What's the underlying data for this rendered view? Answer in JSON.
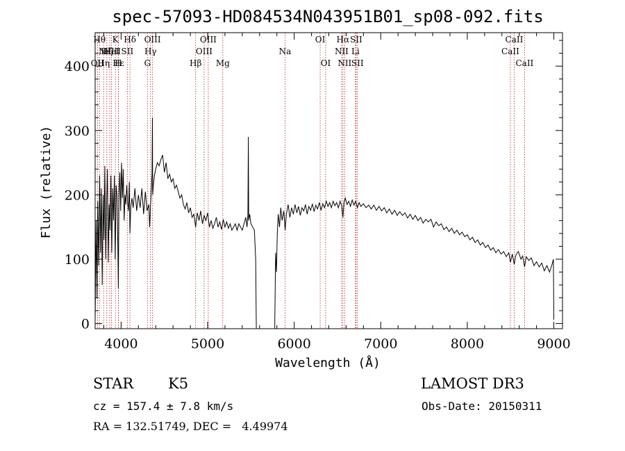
{
  "chart_data": {
    "type": "line",
    "title": "spec-57093-HD084534N043951B01_sp08-092.fits",
    "xlabel": "Wavelength (Å)",
    "ylabel": "Flux (relative)",
    "xlim": [
      3700,
      9100
    ],
    "ylim": [
      -8,
      452
    ],
    "x_ticks": [
      4000,
      5000,
      6000,
      7000,
      8000,
      9000
    ],
    "y_ticks": [
      0,
      100,
      200,
      300,
      400
    ],
    "grid": false,
    "series": [
      {
        "color": "#000000",
        "points": [
          [
            3700,
            5
          ],
          [
            3712,
            160
          ],
          [
            3722,
            40
          ],
          [
            3730,
            190
          ],
          [
            3740,
            90
          ],
          [
            3752,
            230
          ],
          [
            3762,
            110
          ],
          [
            3772,
            210
          ],
          [
            3782,
            60
          ],
          [
            3792,
            200
          ],
          [
            3802,
            130
          ],
          [
            3812,
            245
          ],
          [
            3822,
            100
          ],
          [
            3832,
            190
          ],
          [
            3842,
            240
          ],
          [
            3852,
            95
          ],
          [
            3862,
            185
          ],
          [
            3872,
            145
          ],
          [
            3882,
            230
          ],
          [
            3892,
            110
          ],
          [
            3902,
            210
          ],
          [
            3912,
            160
          ],
          [
            3922,
            230
          ],
          [
            3932,
            100
          ],
          [
            3942,
            215
          ],
          [
            3952,
            200
          ],
          [
            3962,
            120
          ],
          [
            3968,
            55
          ],
          [
            3975,
            200
          ],
          [
            3985,
            235
          ],
          [
            3995,
            175
          ],
          [
            4005,
            250
          ],
          [
            4015,
            195
          ],
          [
            4025,
            240
          ],
          [
            4035,
            160
          ],
          [
            4045,
            200
          ],
          [
            4055,
            185
          ],
          [
            4065,
            215
          ],
          [
            4075,
            190
          ],
          [
            4085,
            175
          ],
          [
            4095,
            220
          ],
          [
            4102,
            140
          ],
          [
            4112,
            180
          ],
          [
            4125,
            195
          ],
          [
            4140,
            180
          ],
          [
            4160,
            210
          ],
          [
            4180,
            175
          ],
          [
            4200,
            200
          ],
          [
            4220,
            180
          ],
          [
            4240,
            210
          ],
          [
            4260,
            170
          ],
          [
            4280,
            205
          ],
          [
            4300,
            175
          ],
          [
            4320,
            185
          ],
          [
            4330,
            150
          ],
          [
            4340,
            185
          ],
          [
            4350,
            210
          ],
          [
            4358,
            235
          ],
          [
            4362,
            320
          ],
          [
            4365,
            200
          ],
          [
            4372,
            215
          ],
          [
            4385,
            230
          ],
          [
            4400,
            240
          ],
          [
            4420,
            250
          ],
          [
            4440,
            245
          ],
          [
            4460,
            255
          ],
          [
            4480,
            262
          ],
          [
            4500,
            235
          ],
          [
            4520,
            250
          ],
          [
            4540,
            225
          ],
          [
            4560,
            232
          ],
          [
            4580,
            220
          ],
          [
            4600,
            225
          ],
          [
            4620,
            210
          ],
          [
            4640,
            215
          ],
          [
            4660,
            205
          ],
          [
            4680,
            195
          ],
          [
            4700,
            200
          ],
          [
            4720,
            185
          ],
          [
            4740,
            178
          ],
          [
            4760,
            188
          ],
          [
            4780,
            172
          ],
          [
            4800,
            180
          ],
          [
            4820,
            165
          ],
          [
            4840,
            170
          ],
          [
            4861,
            150
          ],
          [
            4880,
            172
          ],
          [
            4900,
            160
          ],
          [
            4920,
            175
          ],
          [
            4940,
            155
          ],
          [
            4960,
            168
          ],
          [
            4980,
            160
          ],
          [
            5000,
            172
          ],
          [
            5020,
            150
          ],
          [
            5040,
            160
          ],
          [
            5060,
            148
          ],
          [
            5080,
            155
          ],
          [
            5100,
            165
          ],
          [
            5120,
            150
          ],
          [
            5140,
            158
          ],
          [
            5160,
            146
          ],
          [
            5180,
            162
          ],
          [
            5200,
            150
          ],
          [
            5220,
            158
          ],
          [
            5240,
            148
          ],
          [
            5260,
            155
          ],
          [
            5280,
            145
          ],
          [
            5300,
            150
          ],
          [
            5320,
            155
          ],
          [
            5340,
            145
          ],
          [
            5360,
            155
          ],
          [
            5380,
            150
          ],
          [
            5400,
            145
          ],
          [
            5420,
            155
          ],
          [
            5440,
            165
          ],
          [
            5455,
            150
          ],
          [
            5465,
            170
          ],
          [
            5470,
            290
          ],
          [
            5474,
            160
          ],
          [
            5485,
            170
          ],
          [
            5500,
            155
          ],
          [
            5520,
            150
          ],
          [
            5540,
            145
          ],
          [
            5555,
            100
          ],
          [
            5562,
            -8
          ],
          [
            5775,
            -8
          ],
          [
            5785,
            110
          ],
          [
            5795,
            80
          ],
          [
            5805,
            140
          ],
          [
            5815,
            170
          ],
          [
            5830,
            150
          ],
          [
            5845,
            180
          ],
          [
            5860,
            160
          ],
          [
            5880,
            175
          ],
          [
            5895,
            145
          ],
          [
            5910,
            170
          ],
          [
            5930,
            185
          ],
          [
            5950,
            165
          ],
          [
            5970,
            180
          ],
          [
            5990,
            170
          ],
          [
            6010,
            185
          ],
          [
            6030,
            172
          ],
          [
            6050,
            182
          ],
          [
            6070,
            168
          ],
          [
            6090,
            180
          ],
          [
            6110,
            175
          ],
          [
            6130,
            185
          ],
          [
            6150,
            170
          ],
          [
            6170,
            182
          ],
          [
            6190,
            176
          ],
          [
            6210,
            186
          ],
          [
            6230,
            174
          ],
          [
            6250,
            184
          ],
          [
            6270,
            178
          ],
          [
            6290,
            188
          ],
          [
            6310,
            176
          ],
          [
            6330,
            186
          ],
          [
            6350,
            180
          ],
          [
            6370,
            190
          ],
          [
            6390,
            182
          ],
          [
            6410,
            188
          ],
          [
            6430,
            180
          ],
          [
            6450,
            190
          ],
          [
            6470,
            183
          ],
          [
            6490,
            188
          ],
          [
            6510,
            180
          ],
          [
            6530,
            190
          ],
          [
            6550,
            182
          ],
          [
            6563,
            165
          ],
          [
            6575,
            188
          ],
          [
            6590,
            195
          ],
          [
            6610,
            185
          ],
          [
            6630,
            190
          ],
          [
            6650,
            182
          ],
          [
            6670,
            192
          ],
          [
            6690,
            184
          ],
          [
            6710,
            190
          ],
          [
            6730,
            180
          ],
          [
            6750,
            188
          ],
          [
            6770,
            182
          ],
          [
            6800,
            186
          ],
          [
            6830,
            180
          ],
          [
            6860,
            184
          ],
          [
            6890,
            178
          ],
          [
            6920,
            184
          ],
          [
            6950,
            176
          ],
          [
            6980,
            182
          ],
          [
            7010,
            175
          ],
          [
            7040,
            180
          ],
          [
            7070,
            172
          ],
          [
            7100,
            178
          ],
          [
            7130,
            170
          ],
          [
            7160,
            176
          ],
          [
            7190,
            168
          ],
          [
            7220,
            174
          ],
          [
            7250,
            168
          ],
          [
            7280,
            172
          ],
          [
            7310,
            164
          ],
          [
            7340,
            170
          ],
          [
            7370,
            162
          ],
          [
            7400,
            168
          ],
          [
            7430,
            160
          ],
          [
            7460,
            165
          ],
          [
            7490,
            156
          ],
          [
            7520,
            162
          ],
          [
            7550,
            158
          ],
          [
            7580,
            162
          ],
          [
            7610,
            150
          ],
          [
            7640,
            158
          ],
          [
            7670,
            152
          ],
          [
            7700,
            155
          ],
          [
            7730,
            146
          ],
          [
            7760,
            150
          ],
          [
            7790,
            143
          ],
          [
            7820,
            148
          ],
          [
            7850,
            140
          ],
          [
            7880,
            145
          ],
          [
            7910,
            138
          ],
          [
            7940,
            142
          ],
          [
            7970,
            135
          ],
          [
            8000,
            138
          ],
          [
            8030,
            130
          ],
          [
            8060,
            134
          ],
          [
            8090,
            126
          ],
          [
            8120,
            130
          ],
          [
            8150,
            122
          ],
          [
            8180,
            126
          ],
          [
            8210,
            118
          ],
          [
            8240,
            122
          ],
          [
            8270,
            114
          ],
          [
            8300,
            118
          ],
          [
            8330,
            110
          ],
          [
            8360,
            115
          ],
          [
            8390,
            108
          ],
          [
            8420,
            112
          ],
          [
            8450,
            104
          ],
          [
            8480,
            110
          ],
          [
            8498,
            95
          ],
          [
            8520,
            108
          ],
          [
            8542,
            92
          ],
          [
            8560,
            106
          ],
          [
            8590,
            112
          ],
          [
            8620,
            100
          ],
          [
            8640,
            105
          ],
          [
            8662,
            88
          ],
          [
            8680,
            104
          ],
          [
            8710,
            98
          ],
          [
            8740,
            102
          ],
          [
            8770,
            90
          ],
          [
            8800,
            96
          ],
          [
            8830,
            88
          ],
          [
            8860,
            94
          ],
          [
            8890,
            82
          ],
          [
            8920,
            90
          ],
          [
            8950,
            80
          ],
          [
            8980,
            92
          ],
          [
            8995,
            100
          ],
          [
            9000,
            6
          ]
        ]
      }
    ],
    "reference_lines": [
      {
        "x": 3727,
        "labels": [
          "OII"
        ],
        "rows": [
          2
        ]
      },
      {
        "x": 3750,
        "labels": [
          "Hθ"
        ],
        "rows": [
          0
        ]
      },
      {
        "x": 3798,
        "labels": [
          "Hη"
        ],
        "rows": [
          2
        ]
      },
      {
        "x": 3835,
        "labels": [
          "Hζ"
        ],
        "rows": [
          1
        ]
      },
      {
        "x": 3869,
        "labels": [
          "NeIII"
        ],
        "rows": [
          1
        ]
      },
      {
        "x": 3889,
        "labels": [
          "HeI"
        ],
        "rows": [
          1
        ]
      },
      {
        "x": 3934,
        "labels": [
          "K"
        ],
        "rows": [
          0
        ]
      },
      {
        "x": 3968,
        "labels": [
          "H"
        ],
        "rows": [
          2
        ]
      },
      {
        "x": 3970,
        "labels": [
          "Hε"
        ],
        "rows": [
          2
        ]
      },
      {
        "x": 4072,
        "labels": [
          "SII"
        ],
        "rows": [
          1
        ]
      },
      {
        "x": 4102,
        "labels": [
          "Hδ"
        ],
        "rows": [
          0
        ]
      },
      {
        "x": 4304,
        "labels": [
          "G"
        ],
        "rows": [
          2
        ]
      },
      {
        "x": 4340,
        "labels": [
          "Hγ"
        ],
        "rows": [
          1
        ]
      },
      {
        "x": 4363,
        "labels": [
          "OIII"
        ],
        "rows": [
          0
        ]
      },
      {
        "x": 4861,
        "labels": [
          "Hβ"
        ],
        "rows": [
          2
        ]
      },
      {
        "x": 4959,
        "labels": [
          "OIII"
        ],
        "rows": [
          1
        ]
      },
      {
        "x": 5007,
        "labels": [
          "OIII"
        ],
        "rows": [
          0
        ]
      },
      {
        "x": 5175,
        "labels": [
          "Mg"
        ],
        "rows": [
          2
        ]
      },
      {
        "x": 5894,
        "labels": [
          "Na"
        ],
        "rows": [
          1
        ]
      },
      {
        "x": 6300,
        "labels": [
          "OI"
        ],
        "rows": [
          0
        ]
      },
      {
        "x": 6364,
        "labels": [
          "OI"
        ],
        "rows": [
          2
        ]
      },
      {
        "x": 6548,
        "labels": [
          "NII"
        ],
        "rows": [
          1
        ]
      },
      {
        "x": 6563,
        "labels": [
          "Hα"
        ],
        "rows": [
          0
        ]
      },
      {
        "x": 6583,
        "labels": [
          "NII"
        ],
        "rows": [
          2
        ]
      },
      {
        "x": 6708,
        "labels": [
          "Li"
        ],
        "rows": [
          1
        ]
      },
      {
        "x": 6716,
        "labels": [
          "SII"
        ],
        "rows": [
          0
        ]
      },
      {
        "x": 6731,
        "labels": [
          "SII"
        ],
        "rows": [
          2
        ]
      },
      {
        "x": 8498,
        "labels": [
          "CaII"
        ],
        "rows": [
          1
        ]
      },
      {
        "x": 8542,
        "labels": [
          "CaII"
        ],
        "rows": [
          0
        ]
      },
      {
        "x": 8662,
        "labels": [
          "CaII"
        ],
        "rows": [
          2
        ]
      }
    ]
  },
  "info": {
    "object_type": "STAR",
    "subclass": "K5",
    "survey": "LAMOST DR3",
    "cz": "cz = 157.4 ± 7.8 km/s",
    "obs_date": "Obs-Date: 20150311",
    "coords": "RA = 132.51749, DEC =   4.49974"
  },
  "colors": {
    "spectrum": "#000000",
    "reference_line": "#b22222"
  }
}
